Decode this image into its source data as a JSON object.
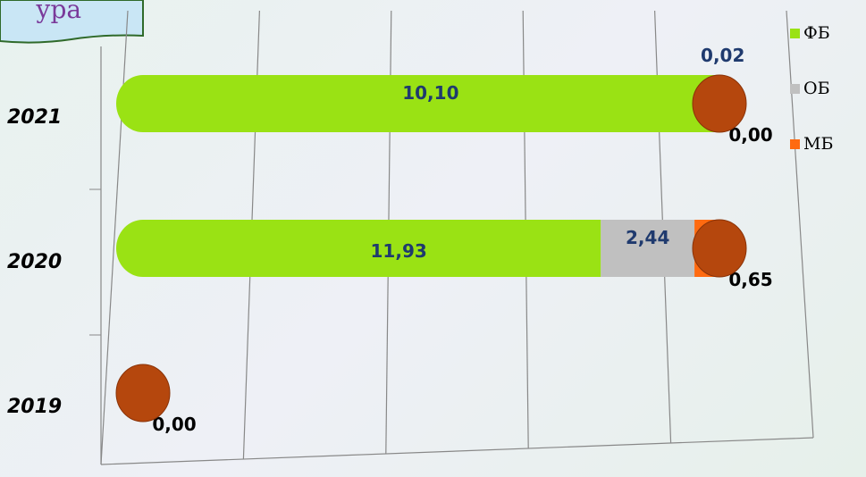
{
  "banner": "ура",
  "chart_data": {
    "type": "stacked-bar-horizontal",
    "stacking": "percent",
    "categories": [
      "2019",
      "2020",
      "2021"
    ],
    "series": [
      {
        "name": "ФБ",
        "color": "#9ae214",
        "values": [
          null,
          11.93,
          10.1
        ],
        "value_labels": [
          null,
          "11,93",
          "10,10"
        ]
      },
      {
        "name": "ОБ",
        "color": "#c0c0c0",
        "values": [
          null,
          2.44,
          0.02
        ],
        "value_labels": [
          null,
          "2,44",
          "0,02"
        ]
      },
      {
        "name": "МБ",
        "color": "#ff6a10",
        "values": [
          0,
          0.65,
          0.0
        ],
        "value_labels": [
          "0,00",
          "0,65",
          "0,00"
        ]
      }
    ],
    "xlim": [
      0,
      100
    ],
    "xticks": [
      0,
      20,
      40,
      60,
      80,
      100
    ],
    "grid": true,
    "legend": "right"
  }
}
